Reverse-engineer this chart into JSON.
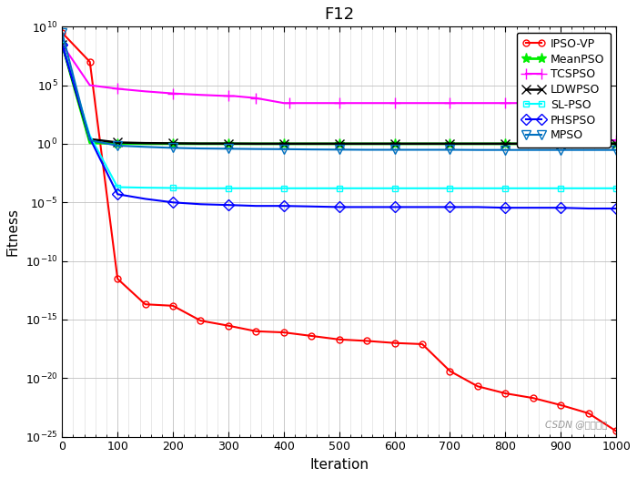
{
  "title": "F12",
  "xlabel": "Iteration",
  "ylabel": "Fitness",
  "xlim": [
    0,
    1000
  ],
  "ylim_log": [
    -25,
    10
  ],
  "x_ticks": [
    0,
    100,
    200,
    300,
    400,
    500,
    600,
    700,
    800,
    900,
    1000
  ],
  "y_ticks_exp": [
    -25,
    -20,
    -15,
    -10,
    -5,
    0,
    5,
    10
  ],
  "watermark": "CSDN @心叶明月",
  "series": [
    {
      "label": "IPSO-VP",
      "color": "#FF0000",
      "marker": "o",
      "markerfacecolor": "none",
      "linewidth": 1.5,
      "markersize": 5,
      "markevery": 1,
      "x": [
        0,
        50,
        100,
        150,
        200,
        250,
        300,
        350,
        400,
        450,
        500,
        550,
        600,
        650,
        700,
        750,
        800,
        850,
        900,
        950,
        1000
      ],
      "y": [
        3000000000.0,
        10000000.0,
        3e-12,
        2e-14,
        1.5e-14,
        8e-16,
        3e-16,
        1e-16,
        8e-17,
        4e-17,
        2e-17,
        1.5e-17,
        1e-17,
        8e-18,
        4e-20,
        2e-21,
        5e-22,
        2e-22,
        5e-23,
        1e-23,
        3e-25
      ]
    },
    {
      "label": "MeanPSO",
      "color": "#00EE00",
      "marker": "*",
      "markerfacecolor": "#00EE00",
      "linewidth": 2.0,
      "markersize": 8,
      "markevery": 2,
      "x": [
        0,
        50,
        100,
        150,
        200,
        250,
        300,
        350,
        400,
        450,
        500,
        550,
        600,
        650,
        700,
        750,
        800,
        850,
        900,
        950,
        1000
      ],
      "y": [
        300000000.0,
        1.2,
        1.05,
        1.02,
        1.01,
        1.0,
        1.0,
        1.0,
        1.0,
        1.0,
        1.0,
        1.0,
        1.0,
        1.0,
        1.0,
        1.0,
        1.0,
        1.0,
        1.0,
        1.0,
        1.0
      ]
    },
    {
      "label": "TCSPSO",
      "color": "#FF00FF",
      "marker": "+",
      "markerfacecolor": "#FF00FF",
      "linewidth": 1.5,
      "markersize": 8,
      "markevery": 2,
      "x": [
        0,
        50,
        100,
        150,
        200,
        250,
        300,
        310,
        350,
        400,
        410,
        450,
        500,
        550,
        600,
        650,
        700,
        750,
        800,
        850,
        900,
        950,
        1000
      ],
      "y": [
        300000000.0,
        100000.0,
        50000.0,
        30000.0,
        20000.0,
        15000.0,
        12000.0,
        12000.0,
        8000.0,
        3000.0,
        3000.0,
        3000.0,
        3000.0,
        3000.0,
        3000.0,
        3000.0,
        3000.0,
        3000.0,
        3000.0,
        3000.0,
        3000.0,
        2.0,
        2.0
      ]
    },
    {
      "label": "LDWPSO",
      "color": "#000000",
      "marker": "x",
      "markerfacecolor": "#000000",
      "linewidth": 1.8,
      "markersize": 7,
      "markevery": 2,
      "x": [
        0,
        50,
        100,
        150,
        200,
        250,
        300,
        350,
        400,
        450,
        500,
        550,
        600,
        650,
        700,
        750,
        800,
        850,
        900,
        950,
        1000
      ],
      "y": [
        300000000.0,
        2.5,
        1.3,
        1.15,
        1.1,
        1.05,
        1.05,
        1.02,
        1.02,
        1.02,
        1.02,
        1.02,
        1.02,
        1.02,
        1.02,
        1.02,
        1.02,
        1.02,
        1.02,
        1.02,
        1.02
      ]
    },
    {
      "label": "SL-PSO",
      "color": "#00FFFF",
      "marker": "s",
      "markerfacecolor": "none",
      "linewidth": 1.5,
      "markersize": 5,
      "markevery": 2,
      "x": [
        0,
        50,
        100,
        150,
        200,
        250,
        300,
        350,
        400,
        450,
        500,
        550,
        600,
        650,
        700,
        750,
        800,
        850,
        900,
        950,
        1000
      ],
      "y": [
        300000000.0,
        5.0,
        0.0002,
        0.00018,
        0.00017,
        0.00016,
        0.00016,
        0.00016,
        0.00016,
        0.00016,
        0.00016,
        0.00016,
        0.00016,
        0.00016,
        0.00016,
        0.00016,
        0.00016,
        0.00016,
        0.00016,
        0.00016,
        0.00016
      ]
    },
    {
      "label": "PHSPSO",
      "color": "#0000FF",
      "marker": "D",
      "markerfacecolor": "none",
      "linewidth": 1.5,
      "markersize": 6,
      "markevery": 2,
      "x": [
        0,
        50,
        100,
        150,
        200,
        250,
        300,
        350,
        400,
        450,
        500,
        550,
        600,
        650,
        700,
        750,
        800,
        850,
        900,
        950,
        1000
      ],
      "y": [
        300000000.0,
        3.0,
        5e-05,
        2e-05,
        1e-05,
        7e-06,
        6e-06,
        5e-06,
        5e-06,
        4.5e-06,
        4e-06,
        4e-06,
        4e-06,
        4e-06,
        4e-06,
        4e-06,
        3.5e-06,
        3.5e-06,
        3.5e-06,
        3e-06,
        3e-06
      ]
    },
    {
      "label": "MPSO",
      "color": "#0070C0",
      "marker": "v",
      "markerfacecolor": "none",
      "linewidth": 1.5,
      "markersize": 7,
      "markevery": 2,
      "x": [
        0,
        50,
        100,
        150,
        200,
        250,
        300,
        350,
        400,
        450,
        500,
        550,
        600,
        650,
        700,
        750,
        800,
        850,
        900,
        950,
        1000
      ],
      "y": [
        3000000000.0,
        2.0,
        0.7,
        0.55,
        0.45,
        0.4,
        0.38,
        0.36,
        0.35,
        0.33,
        0.32,
        0.31,
        0.31,
        0.31,
        0.31,
        0.3,
        0.3,
        0.3,
        0.3,
        0.3,
        0.3
      ]
    }
  ]
}
